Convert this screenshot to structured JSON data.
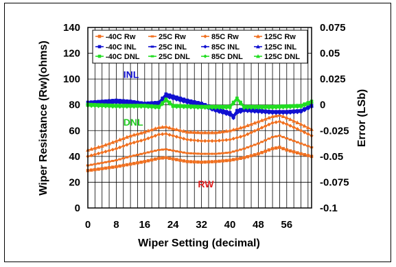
{
  "chart_data": {
    "type": "line",
    "xlabel": "Wiper Setting (decimal)",
    "ylabel_left": "Wiper Resistance (Rw)(ohms)",
    "ylabel_right": "Error (LSb)",
    "xlim": [
      0,
      63
    ],
    "ylim_left": [
      0,
      140
    ],
    "ylim_right": [
      -0.1,
      0.075
    ],
    "x_ticks": [
      "0",
      "8",
      "16",
      "24",
      "32",
      "40",
      "48",
      "56"
    ],
    "x_tick_values": [
      0,
      8,
      16,
      24,
      32,
      40,
      48,
      56
    ],
    "y_left_ticks": [
      "0",
      "20",
      "40",
      "60",
      "80",
      "100",
      "120",
      "140"
    ],
    "y_left_tick_values": [
      0,
      20,
      40,
      60,
      80,
      100,
      120,
      140
    ],
    "y_right_ticks": [
      "-0.1",
      "-0.075",
      "-0.05",
      "-0.025",
      "0",
      "0.025",
      "0.05",
      "0.075"
    ],
    "y_right_tick_values": [
      -0.1,
      -0.075,
      -0.05,
      -0.025,
      0,
      0.025,
      0.05,
      0.075
    ],
    "grid": true,
    "legend_position": "top",
    "annotations": [
      {
        "text": "INL",
        "color": "#1010d0",
        "x": 10,
        "y": 101
      },
      {
        "text": "DNL",
        "color": "#22cc22",
        "x": 10,
        "y": 64
      },
      {
        "text": "RW",
        "color": "#e02020",
        "x": 31,
        "y": 16
      }
    ],
    "colors": {
      "rw": "#f07020",
      "inl": "#1010d0",
      "dnl": "#22dd22"
    },
    "legend": [
      [
        "-40C Rw",
        "25C Rw",
        "85C Rw",
        "125C Rw"
      ],
      [
        "-40C INL",
        "25C INL",
        "85C INL",
        "125C INL"
      ],
      [
        "-40C DNL",
        "25C DNL",
        "85C DNL",
        "125C DNL"
      ]
    ],
    "series": [
      {
        "name": "-40C Rw",
        "axis": "left",
        "group": "rw",
        "points": [
          [
            0,
            29
          ],
          [
            4,
            30.5
          ],
          [
            8,
            32
          ],
          [
            12,
            34
          ],
          [
            16,
            36
          ],
          [
            20,
            38.5
          ],
          [
            22,
            39
          ],
          [
            24,
            38
          ],
          [
            28,
            36
          ],
          [
            32,
            35.5
          ],
          [
            36,
            36
          ],
          [
            40,
            37
          ],
          [
            44,
            39
          ],
          [
            48,
            42
          ],
          [
            52,
            46
          ],
          [
            54,
            47
          ],
          [
            56,
            45
          ],
          [
            60,
            42
          ],
          [
            63,
            40
          ]
        ]
      },
      {
        "name": "25C Rw",
        "axis": "left",
        "group": "rw",
        "points": [
          [
            0,
            33
          ],
          [
            4,
            35
          ],
          [
            8,
            37
          ],
          [
            12,
            40
          ],
          [
            16,
            42.5
          ],
          [
            20,
            45
          ],
          [
            22,
            45.5
          ],
          [
            24,
            44.5
          ],
          [
            28,
            42.5
          ],
          [
            32,
            42
          ],
          [
            36,
            42
          ],
          [
            40,
            43
          ],
          [
            44,
            46
          ],
          [
            48,
            50
          ],
          [
            52,
            55
          ],
          [
            54,
            56
          ],
          [
            56,
            54
          ],
          [
            60,
            50
          ],
          [
            63,
            47
          ]
        ]
      },
      {
        "name": "85C Rw",
        "axis": "left",
        "group": "rw",
        "points": [
          [
            0,
            40
          ],
          [
            4,
            43
          ],
          [
            8,
            46
          ],
          [
            12,
            50
          ],
          [
            16,
            53
          ],
          [
            20,
            57
          ],
          [
            22,
            57.5
          ],
          [
            24,
            56
          ],
          [
            28,
            53
          ],
          [
            32,
            52
          ],
          [
            36,
            52
          ],
          [
            40,
            53
          ],
          [
            44,
            56
          ],
          [
            48,
            61
          ],
          [
            52,
            66
          ],
          [
            54,
            67
          ],
          [
            56,
            65
          ],
          [
            60,
            60
          ],
          [
            63,
            56
          ]
        ]
      },
      {
        "name": "125C Rw",
        "axis": "left",
        "group": "rw",
        "points": [
          [
            0,
            45
          ],
          [
            4,
            48
          ],
          [
            8,
            52
          ],
          [
            12,
            56
          ],
          [
            16,
            59
          ],
          [
            20,
            62.5
          ],
          [
            22,
            63
          ],
          [
            24,
            61.5
          ],
          [
            28,
            59
          ],
          [
            32,
            58.5
          ],
          [
            36,
            58.5
          ],
          [
            40,
            60
          ],
          [
            44,
            63
          ],
          [
            48,
            67
          ],
          [
            52,
            71
          ],
          [
            54,
            72
          ],
          [
            56,
            70
          ],
          [
            60,
            65
          ],
          [
            63,
            61
          ]
        ]
      },
      {
        "name": "-40C INL",
        "axis": "right",
        "group": "inl",
        "points": [
          [
            0,
            0.001
          ],
          [
            4,
            0.002
          ],
          [
            8,
            0.003
          ],
          [
            12,
            0.002
          ],
          [
            16,
            0.001
          ],
          [
            20,
            0.002
          ],
          [
            22,
            0.01
          ],
          [
            24,
            0.008
          ],
          [
            28,
            0.004
          ],
          [
            32,
            0.001
          ],
          [
            36,
            -0.004
          ],
          [
            40,
            -0.008
          ],
          [
            41,
            -0.012
          ],
          [
            42,
            -0.006
          ],
          [
            44,
            -0.004
          ],
          [
            48,
            -0.005
          ],
          [
            52,
            -0.007
          ],
          [
            56,
            -0.007
          ],
          [
            60,
            -0.006
          ],
          [
            63,
            -0.001
          ]
        ]
      },
      {
        "name": "25C INL",
        "axis": "right",
        "group": "inl",
        "points": [
          [
            0,
            0.003
          ],
          [
            4,
            0.004
          ],
          [
            8,
            0.005
          ],
          [
            12,
            0.004
          ],
          [
            16,
            0.002
          ],
          [
            20,
            0.003
          ],
          [
            22,
            0.011
          ],
          [
            24,
            0.009
          ],
          [
            28,
            0.005
          ],
          [
            32,
            0.002
          ],
          [
            36,
            -0.003
          ],
          [
            40,
            -0.007
          ],
          [
            41,
            -0.01
          ],
          [
            42,
            -0.005
          ],
          [
            44,
            -0.003
          ],
          [
            48,
            -0.005
          ],
          [
            52,
            -0.006
          ],
          [
            56,
            -0.006
          ],
          [
            60,
            -0.005
          ],
          [
            63,
            0.0
          ]
        ]
      },
      {
        "name": "85C INL",
        "axis": "right",
        "group": "inl",
        "points": [
          [
            0,
            0.0
          ],
          [
            4,
            0.001
          ],
          [
            8,
            0.002
          ],
          [
            12,
            0.001
          ],
          [
            16,
            0.0
          ],
          [
            20,
            0.001
          ],
          [
            22,
            0.008
          ],
          [
            24,
            0.006
          ],
          [
            28,
            0.002
          ],
          [
            32,
            -0.001
          ],
          [
            36,
            -0.006
          ],
          [
            40,
            -0.01
          ],
          [
            41,
            -0.013
          ],
          [
            42,
            -0.008
          ],
          [
            44,
            -0.006
          ],
          [
            48,
            -0.007
          ],
          [
            52,
            -0.008
          ],
          [
            56,
            -0.008
          ],
          [
            60,
            -0.007
          ],
          [
            63,
            -0.002
          ]
        ]
      },
      {
        "name": "125C INL",
        "axis": "right",
        "group": "inl",
        "points": [
          [
            0,
            0.002
          ],
          [
            4,
            0.003
          ],
          [
            8,
            0.004
          ],
          [
            12,
            0.003
          ],
          [
            16,
            0.001
          ],
          [
            20,
            0.002
          ],
          [
            22,
            0.009
          ],
          [
            24,
            0.007
          ],
          [
            28,
            0.003
          ],
          [
            32,
            0.0
          ],
          [
            36,
            -0.005
          ],
          [
            40,
            -0.009
          ],
          [
            41,
            -0.011
          ],
          [
            42,
            -0.007
          ],
          [
            44,
            -0.005
          ],
          [
            48,
            -0.006
          ],
          [
            52,
            -0.007
          ],
          [
            56,
            -0.007
          ],
          [
            60,
            -0.006
          ],
          [
            63,
            -0.001
          ]
        ]
      },
      {
        "name": "-40C DNL",
        "axis": "right",
        "group": "dnl",
        "points": [
          [
            0,
            0.0
          ],
          [
            8,
            -0.001
          ],
          [
            16,
            -0.001
          ],
          [
            20,
            -0.002
          ],
          [
            22,
            0.005
          ],
          [
            24,
            -0.001
          ],
          [
            32,
            -0.002
          ],
          [
            40,
            -0.002
          ],
          [
            42,
            0.006
          ],
          [
            44,
            -0.002
          ],
          [
            52,
            -0.002
          ],
          [
            60,
            -0.001
          ],
          [
            63,
            0.003
          ]
        ]
      },
      {
        "name": "25C DNL",
        "axis": "right",
        "group": "dnl",
        "points": [
          [
            0,
            0.001
          ],
          [
            8,
            0.0
          ],
          [
            16,
            0.0
          ],
          [
            20,
            -0.001
          ],
          [
            22,
            0.006
          ],
          [
            24,
            0.0
          ],
          [
            32,
            -0.001
          ],
          [
            40,
            -0.001
          ],
          [
            42,
            0.007
          ],
          [
            44,
            -0.001
          ],
          [
            52,
            -0.001
          ],
          [
            60,
            0.0
          ],
          [
            63,
            0.004
          ]
        ]
      },
      {
        "name": "85C DNL",
        "axis": "right",
        "group": "dnl",
        "points": [
          [
            0,
            -0.001
          ],
          [
            8,
            -0.002
          ],
          [
            16,
            -0.002
          ],
          [
            20,
            -0.003
          ],
          [
            22,
            0.004
          ],
          [
            24,
            -0.002
          ],
          [
            32,
            -0.003
          ],
          [
            40,
            -0.003
          ],
          [
            42,
            0.005
          ],
          [
            44,
            -0.003
          ],
          [
            52,
            -0.003
          ],
          [
            60,
            -0.002
          ],
          [
            63,
            0.002
          ]
        ]
      },
      {
        "name": "125C DNL",
        "axis": "right",
        "group": "dnl",
        "points": [
          [
            0,
            0.0
          ],
          [
            8,
            -0.001
          ],
          [
            16,
            -0.001
          ],
          [
            20,
            -0.002
          ],
          [
            22,
            0.005
          ],
          [
            24,
            -0.001
          ],
          [
            32,
            -0.002
          ],
          [
            40,
            -0.002
          ],
          [
            42,
            0.006
          ],
          [
            44,
            -0.002
          ],
          [
            52,
            -0.002
          ],
          [
            60,
            -0.001
          ],
          [
            63,
            0.003
          ]
        ]
      }
    ]
  }
}
